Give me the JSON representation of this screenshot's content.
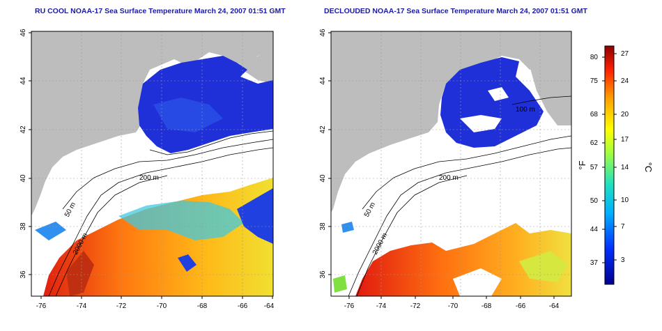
{
  "left_panel": {
    "title": "RU COOL NOAA-17 Sea Surface Temperature March 24, 2007 01:51 GMT",
    "contour_labels": [
      "200 m",
      "50 m",
      "2000 m"
    ]
  },
  "right_panel": {
    "title": "DECLOUDED NOAA-17 Sea Surface Temperature March 24, 2007 01:51 GMT",
    "contour_labels": [
      "100 m",
      "200 m",
      "50 m",
      "2000 m"
    ]
  },
  "axes": {
    "y_ticks": [
      "46",
      "44",
      "42",
      "40",
      "38",
      "36"
    ],
    "x_ticks": [
      "-76",
      "-74",
      "-72",
      "-70",
      "-68",
      "-66",
      "-64"
    ]
  },
  "colorbar": {
    "fahrenheit_unit": "°F",
    "celsius_unit": "°C",
    "fahrenheit_ticks": [
      "80",
      "75",
      "68",
      "62",
      "57",
      "50",
      "44",
      "37"
    ],
    "celsius_ticks": [
      "27",
      "24",
      "20",
      "17",
      "14",
      "10",
      "7",
      "3"
    ]
  },
  "colors": {
    "land": "#bdbdbd",
    "ocean_masked": "#ffffff",
    "cold": "#1f2fd6",
    "warm": "#e8401a",
    "title": "#1a1aa6"
  }
}
